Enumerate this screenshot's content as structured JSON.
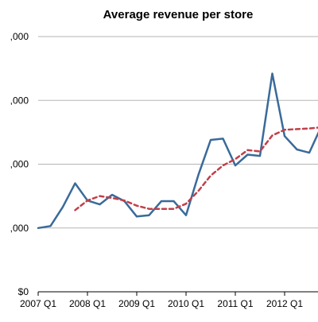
{
  "chart_data": {
    "type": "line",
    "title": "Average revenue per store",
    "xlabel": "",
    "ylabel": "",
    "ylim": [
      0,
      4
    ],
    "y_ticks": [
      {
        "value": 0,
        "label": "$0"
      },
      {
        "value": 1,
        "label": ",000"
      },
      {
        "value": 2,
        "label": ",000"
      },
      {
        "value": 3,
        "label": ",000"
      },
      {
        "value": 4,
        "label": ",000"
      }
    ],
    "x_ticks": [
      {
        "index": 0,
        "label": "2007 Q1"
      },
      {
        "index": 4,
        "label": "2008 Q1"
      },
      {
        "index": 8,
        "label": "2009 Q1"
      },
      {
        "index": 12,
        "label": "2010 Q1"
      },
      {
        "index": 16,
        "label": "2011 Q1"
      },
      {
        "index": 20,
        "label": "2012 Q1"
      }
    ],
    "series": [
      {
        "style": "solid",
        "color": "#3a6a9a",
        "values": [
          1.0,
          1.03,
          1.33,
          1.7,
          1.43,
          1.37,
          1.52,
          1.42,
          1.18,
          1.2,
          1.42,
          1.42,
          1.2,
          1.83,
          2.38,
          2.4,
          1.98,
          2.15,
          2.13,
          3.42,
          2.44,
          2.23,
          2.18,
          2.6
        ]
      },
      {
        "style": "dashed",
        "color": "#c0404a",
        "values": [
          null,
          null,
          null,
          1.28,
          1.43,
          1.5,
          1.47,
          1.43,
          1.35,
          1.3,
          1.3,
          1.3,
          1.38,
          1.58,
          1.82,
          1.98,
          2.08,
          2.22,
          2.2,
          2.45,
          2.54,
          2.55,
          2.56,
          2.58
        ]
      }
    ],
    "grid": true,
    "legend": "none"
  }
}
